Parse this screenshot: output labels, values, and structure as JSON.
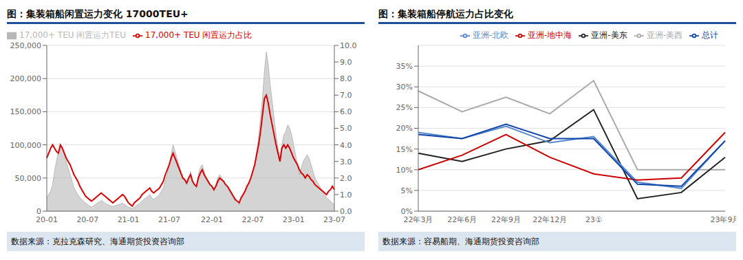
{
  "chart_data": [
    {
      "type": "area",
      "title": "图：集装箱船闲置运力变化 17000TEU+",
      "annotations": [
        "数据来源：克拉克森研究、海通期货投资咨询部"
      ],
      "categories": [
        "20-01",
        null,
        null,
        null,
        null,
        null,
        null,
        null,
        null,
        null,
        null,
        null,
        null,
        null,
        null,
        null,
        null,
        null,
        null,
        null,
        null,
        "20-07",
        null,
        null,
        null,
        null,
        null,
        null,
        null,
        null,
        null,
        null,
        null,
        null,
        null,
        null,
        null,
        null,
        null,
        null,
        null,
        null,
        "21-01",
        null,
        null,
        null,
        null,
        null,
        null,
        null,
        null,
        null,
        null,
        null,
        null,
        null,
        null,
        null,
        null,
        null,
        null,
        null,
        null,
        "21-07",
        null,
        null,
        null,
        null,
        null,
        null,
        null,
        null,
        null,
        null,
        null,
        null,
        null,
        null,
        null,
        null,
        null,
        null,
        null,
        null,
        null,
        "22-01",
        null,
        null,
        null,
        null,
        null,
        null,
        null,
        null,
        null,
        null,
        null,
        null,
        null,
        null,
        null,
        null,
        null,
        null,
        null,
        null,
        "22-07",
        null,
        null,
        null,
        null,
        null,
        null,
        null,
        null,
        null,
        null,
        null,
        null,
        null,
        null,
        null,
        null,
        null,
        null,
        null,
        null,
        "23-01",
        null,
        null,
        null,
        null,
        null,
        null,
        null,
        null,
        null,
        null,
        null,
        null,
        null,
        null,
        null,
        null,
        null,
        null,
        null,
        null,
        "23-07"
      ],
      "series": [
        {
          "name": "17,000+ TEU 闲置运力TEU",
          "type": "area",
          "color": "#b8b8b8",
          "values": [
            20000,
            25000,
            30000,
            40000,
            60000,
            75000,
            90000,
            100000,
            95000,
            85000,
            75000,
            65000,
            55000,
            45000,
            35000,
            30000,
            25000,
            20000,
            18000,
            15000,
            12000,
            10000,
            8000,
            6000,
            8000,
            10000,
            12000,
            14000,
            16000,
            14000,
            12000,
            10000,
            9000,
            8000,
            7000,
            8000,
            9000,
            10000,
            11000,
            12000,
            10000,
            8000,
            6000,
            5000,
            4000,
            6000,
            8000,
            10000,
            12000,
            15000,
            18000,
            20000,
            22000,
            25000,
            20000,
            18000,
            20000,
            22000,
            25000,
            30000,
            35000,
            45000,
            55000,
            70000,
            85000,
            100000,
            90000,
            80000,
            70000,
            60000,
            50000,
            45000,
            40000,
            50000,
            60000,
            45000,
            40000,
            35000,
            55000,
            65000,
            70000,
            60000,
            50000,
            45000,
            40000,
            35000,
            30000,
            40000,
            50000,
            55000,
            50000,
            45000,
            40000,
            35000,
            30000,
            25000,
            20000,
            15000,
            12000,
            10000,
            20000,
            25000,
            30000,
            35000,
            40000,
            50000,
            60000,
            70000,
            90000,
            110000,
            140000,
            170000,
            210000,
            240000,
            220000,
            190000,
            165000,
            140000,
            115000,
            95000,
            80000,
            100000,
            115000,
            120000,
            130000,
            125000,
            115000,
            100000,
            85000,
            70000,
            55000,
            65000,
            75000,
            80000,
            85000,
            80000,
            70000,
            60000,
            50000,
            45000,
            40000,
            35000,
            30000,
            25000,
            20000,
            18000,
            15000,
            12000,
            10000
          ]
        },
        {
          "name": "17,000+ TEU 闲置运力占比",
          "type": "line",
          "color": "#dd0000",
          "axis": "y2",
          "values": [
            3.2,
            3.5,
            3.8,
            4.0,
            3.8,
            3.6,
            3.5,
            4.0,
            3.8,
            3.5,
            3.2,
            3.0,
            2.8,
            2.5,
            2.2,
            2.0,
            1.8,
            1.5,
            1.3,
            1.1,
            0.9,
            0.8,
            0.7,
            0.6,
            0.7,
            0.8,
            0.9,
            1.0,
            1.1,
            1.0,
            0.9,
            0.8,
            0.7,
            0.6,
            0.5,
            0.6,
            0.7,
            0.8,
            0.9,
            1.0,
            0.9,
            0.7,
            0.5,
            0.4,
            0.3,
            0.5,
            0.6,
            0.7,
            0.8,
            1.0,
            1.1,
            1.2,
            1.3,
            1.4,
            1.2,
            1.1,
            1.2,
            1.3,
            1.4,
            1.6,
            1.8,
            2.2,
            2.5,
            2.8,
            3.2,
            3.5,
            3.2,
            2.9,
            2.6,
            2.3,
            2.0,
            1.9,
            1.7,
            2.0,
            2.2,
            1.8,
            1.6,
            1.5,
            2.0,
            2.3,
            2.5,
            2.2,
            2.0,
            1.8,
            1.6,
            1.5,
            1.3,
            1.5,
            1.8,
            2.0,
            1.9,
            1.8,
            1.6,
            1.5,
            1.3,
            1.1,
            0.9,
            0.7,
            0.6,
            0.5,
            0.8,
            1.0,
            1.2,
            1.5,
            1.7,
            2.0,
            2.4,
            2.8,
            3.4,
            4.0,
            4.8,
            5.8,
            6.8,
            7.0,
            6.5,
            5.8,
            5.2,
            4.6,
            4.0,
            3.5,
            3.0,
            3.8,
            4.0,
            3.8,
            4.0,
            3.8,
            3.5,
            3.2,
            3.0,
            2.8,
            2.5,
            2.3,
            2.2,
            2.0,
            2.2,
            2.1,
            1.9,
            1.8,
            1.6,
            1.5,
            1.4,
            1.3,
            1.2,
            1.1,
            1.0,
            1.2,
            1.3,
            1.5,
            1.3
          ]
        }
      ],
      "ylim": [
        0,
        250000
      ],
      "yticks": [
        0,
        {
          "value": 50000,
          "label": "50,000"
        },
        {
          "value": 100000,
          "label": "100,000"
        },
        {
          "value": 150000,
          "label": "150,000"
        },
        {
          "value": 200000,
          "label": "200,000"
        },
        {
          "value": 250000,
          "label": "250,000"
        }
      ],
      "y2lim": [
        0,
        10
      ],
      "y2ticks": [
        {
          "value": 0,
          "label": "0.0"
        },
        {
          "value": 1,
          "label": "1.0"
        },
        {
          "value": 2,
          "label": "2.0"
        },
        {
          "value": 3,
          "label": "3.0"
        },
        {
          "value": 4,
          "label": "4.0"
        },
        {
          "value": 5,
          "label": "5.0"
        },
        {
          "value": 6,
          "label": "6.0"
        },
        {
          "value": 7,
          "label": "7.0"
        },
        {
          "value": 8,
          "label": "8.0"
        },
        {
          "value": 9,
          "label": "9.0"
        },
        {
          "value": 10,
          "label": "10.0"
        }
      ],
      "grid": true,
      "legend": "upper left"
    },
    {
      "type": "line",
      "title": "图：集装箱船停航运力占比变化",
      "annotations": [
        "数据来源：容易船期、海通期货投资咨询部"
      ],
      "categories": [
        "22年3月",
        "22年6月",
        "22年9月",
        "22年12月",
        "23①",
        null,
        null,
        "23年9月"
      ],
      "series": [
        {
          "name": "亚洲-美西",
          "color": "#aaaaaa",
          "values": [
            0.29,
            0.24,
            0.275,
            0.235,
            0.315,
            0.1,
            0.1,
            0.1
          ]
        },
        {
          "name": "亚洲-美东",
          "color": "#222222",
          "values": [
            0.14,
            0.12,
            0.15,
            0.17,
            0.245,
            0.03,
            0.045,
            0.13
          ]
        },
        {
          "name": "亚洲-北欧",
          "color": "#5588cc",
          "values": [
            0.19,
            0.175,
            0.205,
            0.165,
            0.18,
            0.07,
            0.055,
            0.17
          ]
        },
        {
          "name": "亚洲-地中海",
          "color": "#cc0000",
          "values": [
            0.1,
            0.135,
            0.185,
            0.13,
            0.09,
            0.075,
            0.08,
            0.19
          ]
        },
        {
          "name": "总计",
          "color": "#1144aa",
          "values": [
            0.185,
            0.175,
            0.21,
            0.175,
            0.175,
            0.065,
            0.06,
            0.17
          ]
        }
      ],
      "ylim": [
        0,
        0.4
      ],
      "yticks": [
        {
          "value": 0.0,
          "label": "0%"
        },
        {
          "value": 0.05,
          "label": "5%"
        },
        {
          "value": 0.1,
          "label": "10%"
        },
        {
          "value": 0.15,
          "label": "15%"
        },
        {
          "value": 0.2,
          "label": "20%"
        },
        {
          "value": 0.25,
          "label": "25%"
        },
        {
          "value": 0.3,
          "label": "30%"
        },
        {
          "value": 0.35,
          "label": "35%"
        }
      ],
      "grid": true,
      "legend": "upper right"
    }
  ]
}
